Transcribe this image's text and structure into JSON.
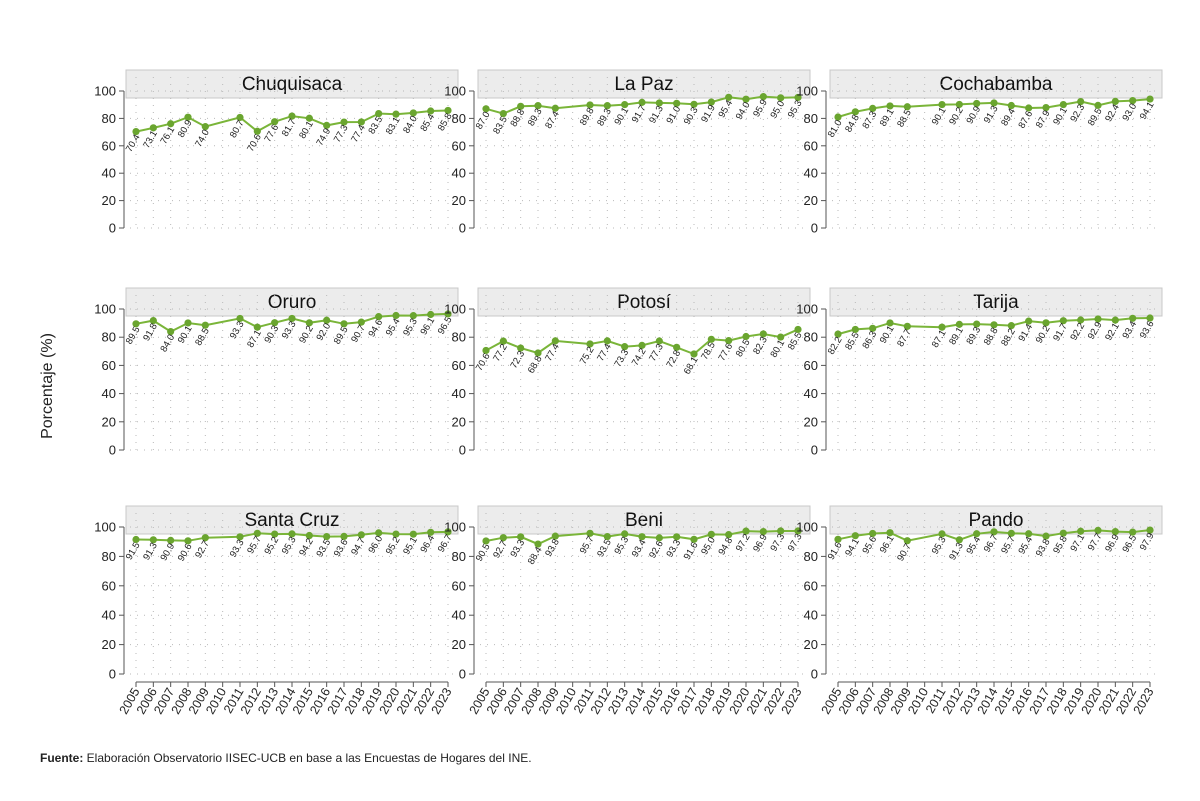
{
  "chart_data": {
    "type": "line",
    "layout": "small-multiples",
    "ylabel": "Porcentaje (%)",
    "ylim": [
      0,
      100
    ],
    "yticks": [
      0,
      20,
      40,
      60,
      80,
      100
    ],
    "grid": "dotted",
    "colors": {
      "line": "#7ab539",
      "marker": "#6aa52f",
      "strip": "#ececec",
      "strip_border": "#c8c8c8"
    },
    "x": [
      "2005",
      "2006",
      "2007",
      "2008",
      "2009",
      "2010",
      "2011",
      "2012",
      "2013",
      "2014",
      "2015",
      "2016",
      "2017",
      "2018",
      "2019",
      "2020",
      "2021",
      "2022",
      "2023"
    ],
    "panels": [
      {
        "name": "Chuquisaca",
        "values": [
          70.4,
          73.1,
          76.1,
          80.9,
          74.0,
          null,
          80.7,
          70.6,
          77.6,
          81.7,
          80.1,
          74.9,
          77.3,
          77.4,
          83.5,
          83.1,
          84.0,
          85.4,
          85.8
        ],
        "labels": [
          "70.4",
          "73.1",
          "76.1",
          "80.9",
          "74.0",
          "",
          "80.7",
          "70.6",
          "77.6",
          "81.7",
          "80.1",
          "74.9",
          "77.3",
          "77.4",
          "83.5",
          "83.1",
          "84.0",
          "85.4",
          "85.8"
        ]
      },
      {
        "name": "La Paz",
        "values": [
          87.0,
          83.5,
          88.8,
          89.3,
          87.4,
          null,
          89.8,
          89.3,
          90.1,
          91.7,
          91.3,
          91.0,
          90.3,
          91.9,
          95.4,
          94.0,
          95.9,
          95.0,
          95.3
        ],
        "labels": [
          "87.0",
          "83.5",
          "88.8",
          "89.3",
          "87.4",
          "",
          "89.8",
          "89.3",
          "90.1",
          "91.7",
          "91.3",
          "91.0",
          "90.3",
          "91.9",
          "95.4",
          "94.0",
          "95.9",
          "95.0",
          "95.3"
        ]
      },
      {
        "name": "Cochabamba",
        "values": [
          81.0,
          84.8,
          87.3,
          89.1,
          88.5,
          null,
          90.1,
          90.2,
          90.9,
          91.3,
          89.4,
          87.6,
          87.9,
          90.1,
          92.3,
          89.5,
          92.4,
          93.0,
          94.1
        ],
        "labels": [
          "81.0",
          "84.8",
          "87.3",
          "89.1",
          "88.5",
          "",
          "90.1",
          "90.2",
          "90.9",
          "91.3",
          "89.4",
          "87.6",
          "87.9",
          "90.1",
          "92.3",
          "89.5",
          "92.4",
          "93.0",
          "94.1"
        ]
      },
      {
        "name": "Oruro",
        "values": [
          89.5,
          91.8,
          84.0,
          90.1,
          88.5,
          null,
          93.3,
          87.1,
          90.3,
          93.3,
          90.2,
          92.0,
          89.5,
          90.7,
          94.6,
          95.4,
          95.3,
          96.1,
          96.5
        ],
        "labels": [
          "89.5",
          "91.8",
          "84.0",
          "90.1",
          "88.5",
          "",
          "93.3",
          "87.1",
          "90.3",
          "93.3",
          "90.2",
          "92.0",
          "89.5",
          "90.7",
          "94.6",
          "95.4",
          "95.3",
          "96.1",
          "96.5"
        ]
      },
      {
        "name": "Potosí",
        "values": [
          70.6,
          77.2,
          72.3,
          68.8,
          77.4,
          null,
          75.2,
          77.4,
          73.3,
          74.2,
          77.3,
          72.8,
          68.1,
          78.5,
          77.6,
          80.5,
          82.3,
          80.1,
          85.5
        ],
        "labels": [
          "70.6",
          "77.2",
          "72.3",
          "68.8",
          "77.4",
          "",
          "75.2",
          "77.4",
          "73.3",
          "74.2",
          "77.3",
          "72.8",
          "68.1",
          "78.5",
          "77.6",
          "80.5",
          "82.3",
          "80.1",
          "85.5"
        ]
      },
      {
        "name": "Tarija",
        "values": [
          82.2,
          85.5,
          86.3,
          90.1,
          87.7,
          null,
          87.1,
          89.1,
          89.3,
          88.8,
          88.2,
          91.4,
          90.2,
          91.7,
          92.2,
          92.9,
          92.1,
          93.4,
          93.6
        ],
        "labels": [
          "82.2",
          "85.5",
          "86.3",
          "90.1",
          "87.7",
          "",
          "87.1",
          "89.1",
          "89.3",
          "88.8",
          "88.2",
          "91.4",
          "90.2",
          "91.7",
          "92.2",
          "92.9",
          "92.1",
          "93.4",
          "93.6"
        ]
      },
      {
        "name": "Santa Cruz",
        "values": [
          91.5,
          91.3,
          90.9,
          90.6,
          92.7,
          null,
          93.3,
          95.7,
          95.2,
          95.3,
          94.2,
          93.5,
          93.6,
          94.7,
          96.0,
          95.2,
          95.1,
          96.4,
          96.7
        ],
        "labels": [
          "91.5",
          "91.3",
          "90.9",
          "90.6",
          "92.7",
          "",
          "93.3",
          "95.7",
          "95.2",
          "95.3",
          "94.2",
          "93.5",
          "93.6",
          "94.7",
          "96.0",
          "95.2",
          "95.1",
          "96.4",
          "96.7"
        ]
      },
      {
        "name": "Beni",
        "values": [
          90.5,
          92.7,
          93.3,
          88.4,
          93.8,
          null,
          95.7,
          93.5,
          95.3,
          93.4,
          92.6,
          93.3,
          91.6,
          95.0,
          94.8,
          97.2,
          96.9,
          97.3,
          97.3
        ],
        "labels": [
          "90.5",
          "92.7",
          "93.3",
          "88.4",
          "93.8",
          "",
          "95.7",
          "93.5",
          "95.3",
          "93.4",
          "92.6",
          "93.3",
          "91.6",
          "95.0",
          "94.8",
          "97.2",
          "96.9",
          "97.3",
          "97.3"
        ]
      },
      {
        "name": "Pando",
        "values": [
          91.6,
          94.1,
          95.6,
          96.1,
          90.7,
          null,
          95.3,
          91.3,
          95.4,
          96.7,
          95.7,
          95.4,
          93.8,
          95.8,
          97.1,
          97.7,
          96.9,
          96.5,
          97.9
        ],
        "labels": [
          "91.6",
          "94.1",
          "95.6",
          "96.1",
          "90.7",
          "",
          "95.3",
          "91.3",
          "95.4",
          "96.7",
          "95.7",
          "95.4",
          "93.8",
          "95.8",
          "97.1",
          "97.7",
          "96.9",
          "96.5",
          "97.9"
        ]
      }
    ]
  },
  "source": {
    "label": "Fuente:",
    "text": " Elaboración Observatorio IISEC-UCB en base a las Encuestas de Hogares del INE."
  }
}
